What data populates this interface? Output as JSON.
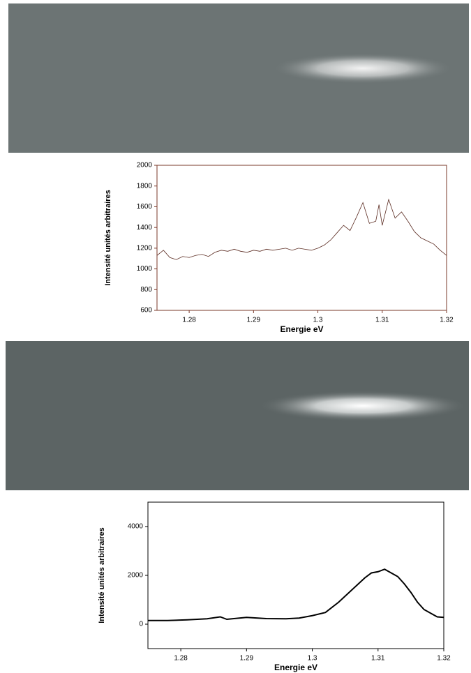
{
  "chart_data": [
    {
      "type": "line",
      "x_label": "Energie eV",
      "y_label": "Intensité unités arbitraires",
      "x": [
        1.275,
        1.276,
        1.277,
        1.278,
        1.279,
        1.28,
        1.281,
        1.282,
        1.283,
        1.284,
        1.285,
        1.286,
        1.287,
        1.288,
        1.289,
        1.29,
        1.291,
        1.292,
        1.293,
        1.294,
        1.295,
        1.296,
        1.297,
        1.298,
        1.299,
        1.3,
        1.301,
        1.302,
        1.303,
        1.304,
        1.305,
        1.306,
        1.307,
        1.308,
        1.309,
        1.3095,
        1.31,
        1.311,
        1.312,
        1.313,
        1.314,
        1.315,
        1.316,
        1.317,
        1.318,
        1.319,
        1.32
      ],
      "series": [
        {
          "color": "#5a2a20",
          "values": [
            1130,
            1180,
            1110,
            1090,
            1120,
            1110,
            1130,
            1140,
            1120,
            1160,
            1180,
            1170,
            1190,
            1170,
            1160,
            1180,
            1170,
            1190,
            1180,
            1190,
            1200,
            1180,
            1200,
            1190,
            1180,
            1200,
            1230,
            1280,
            1350,
            1420,
            1370,
            1500,
            1640,
            1440,
            1460,
            1620,
            1420,
            1670,
            1490,
            1550,
            1460,
            1360,
            1300,
            1270,
            1240,
            1180,
            1130
          ]
        }
      ],
      "xlim": [
        1.275,
        1.32
      ],
      "xticks": [
        1.28,
        1.29,
        1.3,
        1.31,
        1.32
      ],
      "ylim": [
        600,
        2000
      ],
      "yticks": [
        600,
        800,
        1000,
        1200,
        1400,
        1600,
        1800,
        2000
      ]
    },
    {
      "type": "line",
      "x_label": "Energie eV",
      "y_label": "Intensité unités arbitraires",
      "x": [
        1.275,
        1.278,
        1.281,
        1.284,
        1.286,
        1.287,
        1.29,
        1.293,
        1.296,
        1.298,
        1.3,
        1.302,
        1.304,
        1.306,
        1.308,
        1.309,
        1.31,
        1.311,
        1.312,
        1.313,
        1.314,
        1.315,
        1.316,
        1.317,
        1.318,
        1.319,
        1.32
      ],
      "series": [
        {
          "color": "#000000",
          "values": [
            150,
            150,
            180,
            220,
            300,
            200,
            280,
            230,
            220,
            250,
            350,
            480,
            900,
            1400,
            1900,
            2100,
            2150,
            2250,
            2100,
            1950,
            1650,
            1300,
            900,
            600,
            450,
            300,
            280
          ]
        }
      ],
      "xlim": [
        1.275,
        1.32
      ],
      "xticks": [
        1.28,
        1.29,
        1.3,
        1.31,
        1.32
      ],
      "ylim": [
        -1000,
        5000
      ],
      "yticks": [
        0,
        2000,
        4000
      ]
    }
  ]
}
